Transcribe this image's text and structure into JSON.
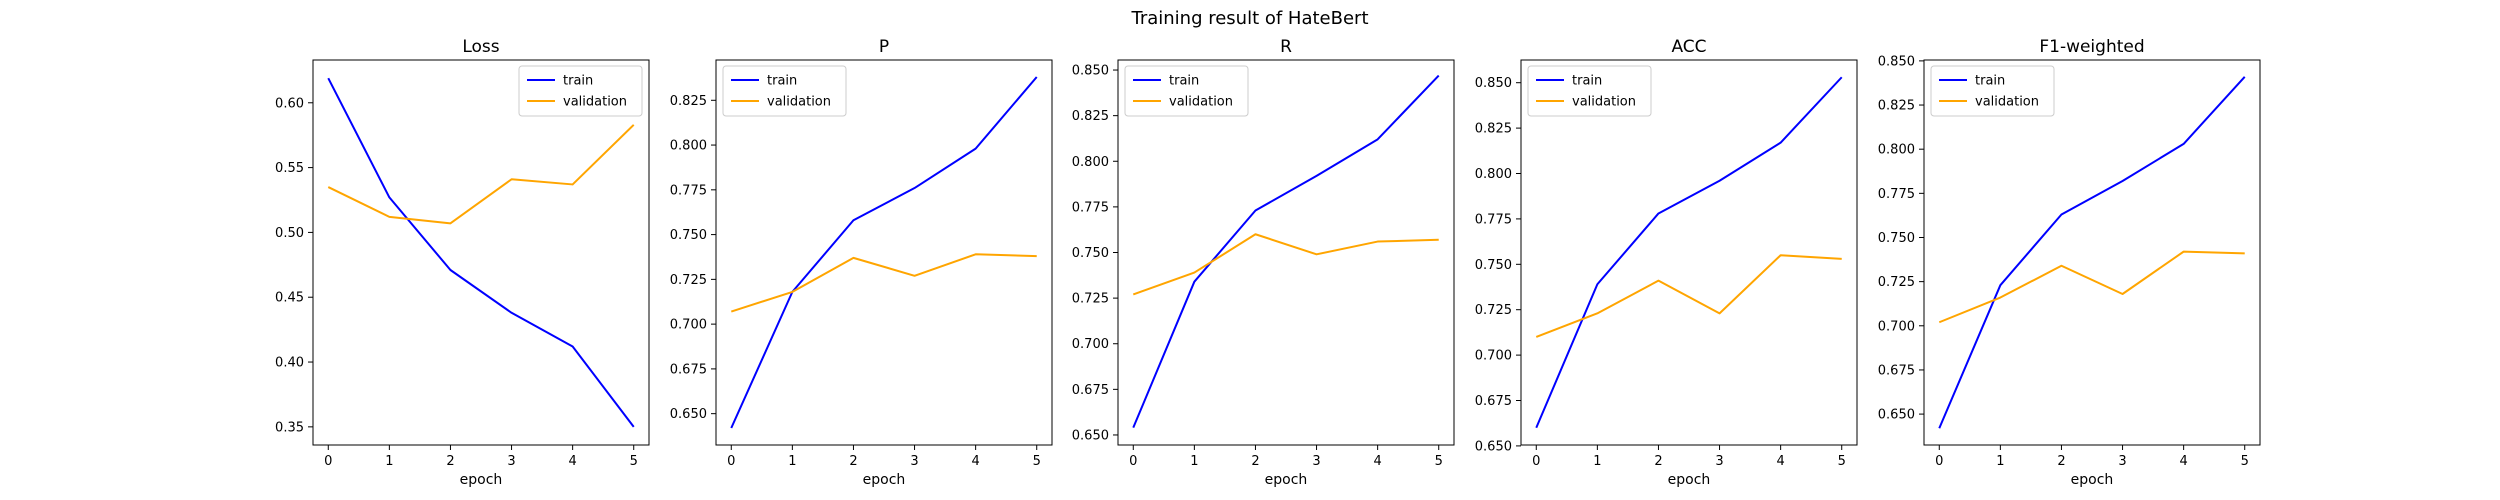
{
  "figure": {
    "suptitle": "Training result of HateBert"
  },
  "colors": {
    "train": "#0000ff",
    "validation": "#ffa500",
    "axes": "#000000",
    "background": "#ffffff"
  },
  "chart_data": [
    {
      "type": "line",
      "title": "Loss",
      "xlabel": "epoch",
      "ylabel": "",
      "x": [
        0,
        1,
        2,
        3,
        4,
        5
      ],
      "xticks": [
        "0",
        "1",
        "2",
        "3",
        "4",
        "5"
      ],
      "xlim": [
        -0.25,
        5.25
      ],
      "ylim": [
        0.336,
        0.633
      ],
      "yticks": [
        "0.35",
        "0.40",
        "0.45",
        "0.50",
        "0.55",
        "0.60"
      ],
      "legend": "top-right",
      "grid": false,
      "series": [
        {
          "name": "train",
          "values": [
            0.619,
            0.527,
            0.471,
            0.438,
            0.412,
            0.35
          ]
        },
        {
          "name": "validation",
          "values": [
            0.535,
            0.512,
            0.507,
            0.541,
            0.537,
            0.583
          ]
        }
      ]
    },
    {
      "type": "line",
      "title": "P",
      "xlabel": "epoch",
      "ylabel": "",
      "x": [
        0,
        1,
        2,
        3,
        4,
        5
      ],
      "xticks": [
        "0",
        "1",
        "2",
        "3",
        "4",
        "5"
      ],
      "xlim": [
        -0.25,
        5.25
      ],
      "ylim": [
        0.6325,
        0.8475
      ],
      "yticks": [
        "0.650",
        "0.675",
        "0.700",
        "0.725",
        "0.750",
        "0.775",
        "0.800",
        "0.825"
      ],
      "legend": "top-left",
      "grid": false,
      "series": [
        {
          "name": "train",
          "values": [
            0.642,
            0.718,
            0.758,
            0.776,
            0.798,
            0.838
          ]
        },
        {
          "name": "validation",
          "values": [
            0.707,
            0.718,
            0.737,
            0.727,
            0.739,
            0.738
          ]
        }
      ]
    },
    {
      "type": "line",
      "title": "R",
      "xlabel": "epoch",
      "ylabel": "",
      "x": [
        0,
        1,
        2,
        3,
        4,
        5
      ],
      "xticks": [
        "0",
        "1",
        "2",
        "3",
        "4",
        "5"
      ],
      "xlim": [
        -0.25,
        5.25
      ],
      "ylim": [
        0.6445,
        0.8555
      ],
      "yticks": [
        "0.650",
        "0.675",
        "0.700",
        "0.725",
        "0.750",
        "0.775",
        "0.800",
        "0.825",
        "0.850"
      ],
      "legend": "top-left",
      "grid": false,
      "series": [
        {
          "name": "train",
          "values": [
            0.654,
            0.734,
            0.773,
            0.792,
            0.812,
            0.847
          ]
        },
        {
          "name": "validation",
          "values": [
            0.727,
            0.739,
            0.76,
            0.749,
            0.756,
            0.757
          ]
        }
      ]
    },
    {
      "type": "line",
      "title": "ACC",
      "xlabel": "epoch",
      "ylabel": "",
      "x": [
        0,
        1,
        2,
        3,
        4,
        5
      ],
      "xticks": [
        "0",
        "1",
        "2",
        "3",
        "4",
        "5"
      ],
      "xlim": [
        -0.25,
        5.25
      ],
      "ylim": [
        0.6505,
        0.8625
      ],
      "yticks": [
        "0.650",
        "0.675",
        "0.700",
        "0.725",
        "0.750",
        "0.775",
        "0.800",
        "0.825",
        "0.850"
      ],
      "legend": "top-left",
      "grid": false,
      "series": [
        {
          "name": "train",
          "values": [
            0.66,
            0.739,
            0.778,
            0.796,
            0.817,
            0.853
          ]
        },
        {
          "name": "validation",
          "values": [
            0.71,
            0.723,
            0.741,
            0.723,
            0.755,
            0.753
          ]
        }
      ]
    },
    {
      "type": "line",
      "title": "F1-weighted",
      "xlabel": "epoch",
      "ylabel": "",
      "x": [
        0,
        1,
        2,
        3,
        4,
        5
      ],
      "xticks": [
        "0",
        "1",
        "2",
        "3",
        "4",
        "5"
      ],
      "xlim": [
        -0.25,
        5.25
      ],
      "ylim": [
        0.6325,
        0.8505
      ],
      "yticks": [
        "0.650",
        "0.675",
        "0.700",
        "0.725",
        "0.750",
        "0.775",
        "0.800",
        "0.825",
        "0.850"
      ],
      "legend": "top-left",
      "grid": false,
      "series": [
        {
          "name": "train",
          "values": [
            0.642,
            0.723,
            0.763,
            0.782,
            0.803,
            0.841
          ]
        },
        {
          "name": "validation",
          "values": [
            0.702,
            0.716,
            0.734,
            0.718,
            0.742,
            0.741
          ]
        }
      ]
    }
  ]
}
